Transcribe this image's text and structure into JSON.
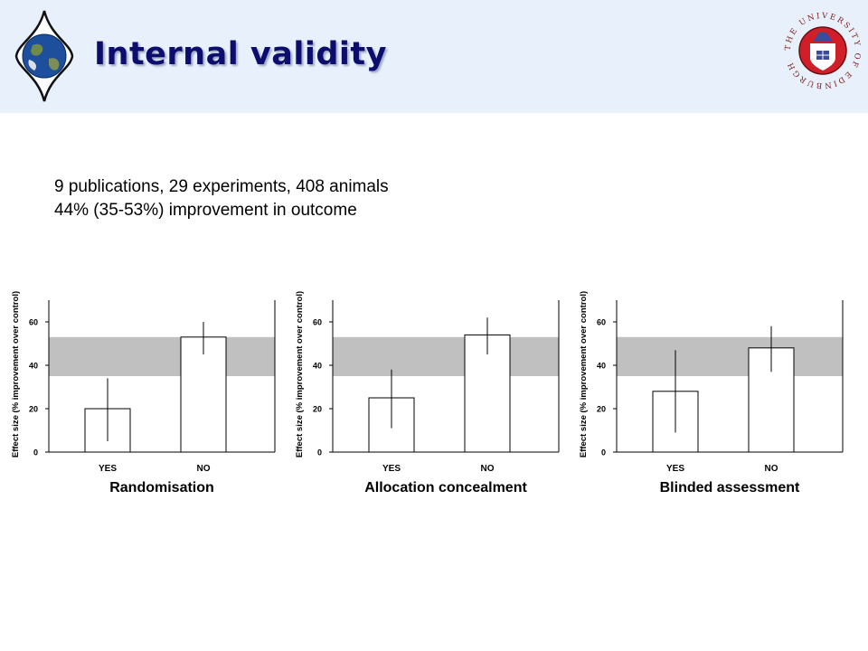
{
  "slide": {
    "title": "Internal validity",
    "summary_lines": [
      "9 publications, 29 experiments, 408 animals",
      "44% (35-53%) improvement in outcome"
    ],
    "logo_right_text": "THE UNIVERSITY OF EDINBURGH",
    "colors": {
      "header_bg": "#e8f1fb",
      "title": "#0d0d6e",
      "band": "#c0c0c0"
    }
  },
  "chart_data": [
    {
      "type": "bar",
      "title": "Randomisation",
      "ylabel": "Effect size (% improvement over control)",
      "categories": [
        "YES",
        "NO"
      ],
      "values": [
        20,
        53
      ],
      "error_low": [
        5,
        45
      ],
      "error_high": [
        34,
        60
      ],
      "reference_band": [
        35,
        53
      ],
      "ylim": [
        0,
        70
      ],
      "yticks": [
        "0",
        "20",
        "40",
        "60"
      ]
    },
    {
      "type": "bar",
      "title": "Allocation concealment",
      "ylabel": "Effect size (% improvement over control)",
      "categories": [
        "YES",
        "NO"
      ],
      "values": [
        25,
        54
      ],
      "error_low": [
        11,
        45
      ],
      "error_high": [
        38,
        62
      ],
      "reference_band": [
        35,
        53
      ],
      "ylim": [
        0,
        70
      ],
      "yticks": [
        "0",
        "20",
        "40",
        "60"
      ]
    },
    {
      "type": "bar",
      "title": "Blinded assessment",
      "ylabel": "Effect size (% improvement over control)",
      "categories": [
        "YES",
        "NO"
      ],
      "values": [
        28,
        48
      ],
      "error_low": [
        9,
        37
      ],
      "error_high": [
        47,
        58
      ],
      "reference_band": [
        35,
        53
      ],
      "ylim": [
        0,
        70
      ],
      "yticks": [
        "0",
        "20",
        "40",
        "60"
      ]
    }
  ]
}
